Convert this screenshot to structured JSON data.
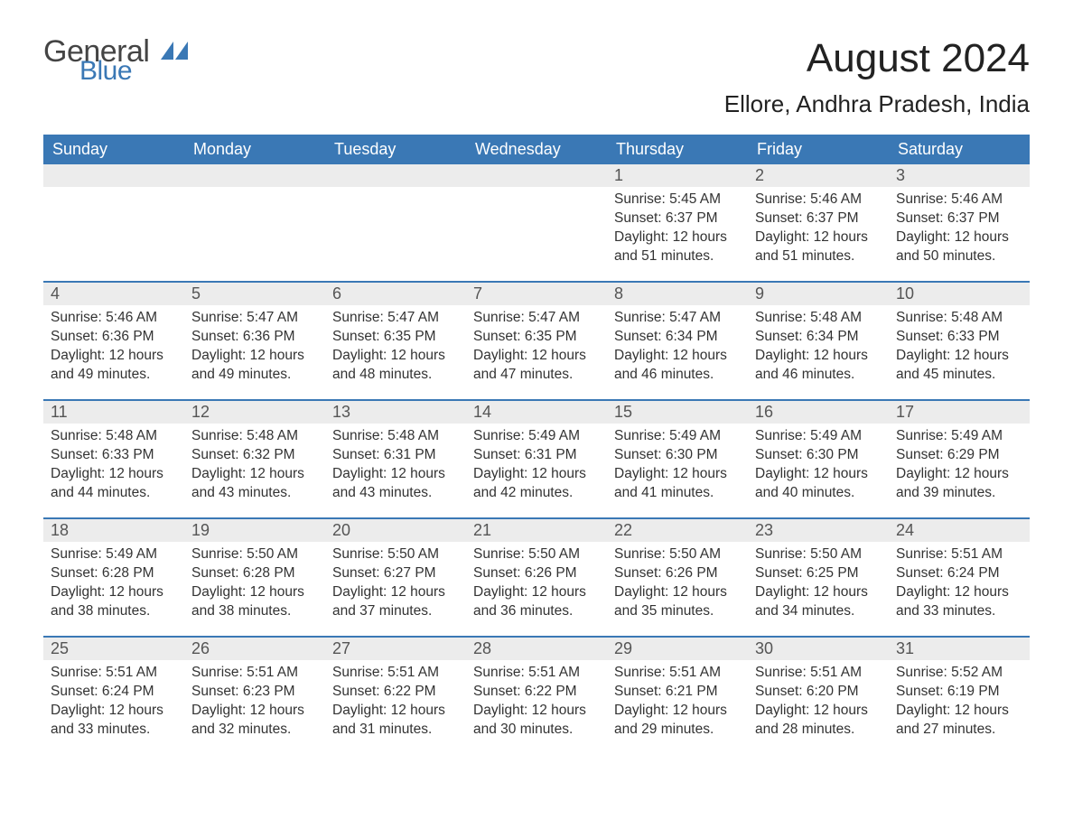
{
  "brand": {
    "part1": "General",
    "part2": "Blue"
  },
  "title": {
    "month": "August 2024",
    "location": "Ellore, Andhra Pradesh, India"
  },
  "colors": {
    "header_bg": "#3a78b5",
    "header_text": "#ffffff",
    "daynum_bg": "#ececec",
    "divider": "#3a78b5",
    "body_text": "#333333",
    "background": "#ffffff"
  },
  "fonts": {
    "base_family": "Arial",
    "title_size_pt": 33,
    "loc_size_pt": 20,
    "header_size_pt": 14,
    "cell_size_pt": 12
  },
  "week_days": [
    "Sunday",
    "Monday",
    "Tuesday",
    "Wednesday",
    "Thursday",
    "Friday",
    "Saturday"
  ],
  "weeks": [
    [
      null,
      null,
      null,
      null,
      {
        "n": "1",
        "sr": "Sunrise: 5:45 AM",
        "ss": "Sunset: 6:37 PM",
        "dl1": "Daylight: 12 hours",
        "dl2": "and 51 minutes."
      },
      {
        "n": "2",
        "sr": "Sunrise: 5:46 AM",
        "ss": "Sunset: 6:37 PM",
        "dl1": "Daylight: 12 hours",
        "dl2": "and 51 minutes."
      },
      {
        "n": "3",
        "sr": "Sunrise: 5:46 AM",
        "ss": "Sunset: 6:37 PM",
        "dl1": "Daylight: 12 hours",
        "dl2": "and 50 minutes."
      }
    ],
    [
      {
        "n": "4",
        "sr": "Sunrise: 5:46 AM",
        "ss": "Sunset: 6:36 PM",
        "dl1": "Daylight: 12 hours",
        "dl2": "and 49 minutes."
      },
      {
        "n": "5",
        "sr": "Sunrise: 5:47 AM",
        "ss": "Sunset: 6:36 PM",
        "dl1": "Daylight: 12 hours",
        "dl2": "and 49 minutes."
      },
      {
        "n": "6",
        "sr": "Sunrise: 5:47 AM",
        "ss": "Sunset: 6:35 PM",
        "dl1": "Daylight: 12 hours",
        "dl2": "and 48 minutes."
      },
      {
        "n": "7",
        "sr": "Sunrise: 5:47 AM",
        "ss": "Sunset: 6:35 PM",
        "dl1": "Daylight: 12 hours",
        "dl2": "and 47 minutes."
      },
      {
        "n": "8",
        "sr": "Sunrise: 5:47 AM",
        "ss": "Sunset: 6:34 PM",
        "dl1": "Daylight: 12 hours",
        "dl2": "and 46 minutes."
      },
      {
        "n": "9",
        "sr": "Sunrise: 5:48 AM",
        "ss": "Sunset: 6:34 PM",
        "dl1": "Daylight: 12 hours",
        "dl2": "and 46 minutes."
      },
      {
        "n": "10",
        "sr": "Sunrise: 5:48 AM",
        "ss": "Sunset: 6:33 PM",
        "dl1": "Daylight: 12 hours",
        "dl2": "and 45 minutes."
      }
    ],
    [
      {
        "n": "11",
        "sr": "Sunrise: 5:48 AM",
        "ss": "Sunset: 6:33 PM",
        "dl1": "Daylight: 12 hours",
        "dl2": "and 44 minutes."
      },
      {
        "n": "12",
        "sr": "Sunrise: 5:48 AM",
        "ss": "Sunset: 6:32 PM",
        "dl1": "Daylight: 12 hours",
        "dl2": "and 43 minutes."
      },
      {
        "n": "13",
        "sr": "Sunrise: 5:48 AM",
        "ss": "Sunset: 6:31 PM",
        "dl1": "Daylight: 12 hours",
        "dl2": "and 43 minutes."
      },
      {
        "n": "14",
        "sr": "Sunrise: 5:49 AM",
        "ss": "Sunset: 6:31 PM",
        "dl1": "Daylight: 12 hours",
        "dl2": "and 42 minutes."
      },
      {
        "n": "15",
        "sr": "Sunrise: 5:49 AM",
        "ss": "Sunset: 6:30 PM",
        "dl1": "Daylight: 12 hours",
        "dl2": "and 41 minutes."
      },
      {
        "n": "16",
        "sr": "Sunrise: 5:49 AM",
        "ss": "Sunset: 6:30 PM",
        "dl1": "Daylight: 12 hours",
        "dl2": "and 40 minutes."
      },
      {
        "n": "17",
        "sr": "Sunrise: 5:49 AM",
        "ss": "Sunset: 6:29 PM",
        "dl1": "Daylight: 12 hours",
        "dl2": "and 39 minutes."
      }
    ],
    [
      {
        "n": "18",
        "sr": "Sunrise: 5:49 AM",
        "ss": "Sunset: 6:28 PM",
        "dl1": "Daylight: 12 hours",
        "dl2": "and 38 minutes."
      },
      {
        "n": "19",
        "sr": "Sunrise: 5:50 AM",
        "ss": "Sunset: 6:28 PM",
        "dl1": "Daylight: 12 hours",
        "dl2": "and 38 minutes."
      },
      {
        "n": "20",
        "sr": "Sunrise: 5:50 AM",
        "ss": "Sunset: 6:27 PM",
        "dl1": "Daylight: 12 hours",
        "dl2": "and 37 minutes."
      },
      {
        "n": "21",
        "sr": "Sunrise: 5:50 AM",
        "ss": "Sunset: 6:26 PM",
        "dl1": "Daylight: 12 hours",
        "dl2": "and 36 minutes."
      },
      {
        "n": "22",
        "sr": "Sunrise: 5:50 AM",
        "ss": "Sunset: 6:26 PM",
        "dl1": "Daylight: 12 hours",
        "dl2": "and 35 minutes."
      },
      {
        "n": "23",
        "sr": "Sunrise: 5:50 AM",
        "ss": "Sunset: 6:25 PM",
        "dl1": "Daylight: 12 hours",
        "dl2": "and 34 minutes."
      },
      {
        "n": "24",
        "sr": "Sunrise: 5:51 AM",
        "ss": "Sunset: 6:24 PM",
        "dl1": "Daylight: 12 hours",
        "dl2": "and 33 minutes."
      }
    ],
    [
      {
        "n": "25",
        "sr": "Sunrise: 5:51 AM",
        "ss": "Sunset: 6:24 PM",
        "dl1": "Daylight: 12 hours",
        "dl2": "and 33 minutes."
      },
      {
        "n": "26",
        "sr": "Sunrise: 5:51 AM",
        "ss": "Sunset: 6:23 PM",
        "dl1": "Daylight: 12 hours",
        "dl2": "and 32 minutes."
      },
      {
        "n": "27",
        "sr": "Sunrise: 5:51 AM",
        "ss": "Sunset: 6:22 PM",
        "dl1": "Daylight: 12 hours",
        "dl2": "and 31 minutes."
      },
      {
        "n": "28",
        "sr": "Sunrise: 5:51 AM",
        "ss": "Sunset: 6:22 PM",
        "dl1": "Daylight: 12 hours",
        "dl2": "and 30 minutes."
      },
      {
        "n": "29",
        "sr": "Sunrise: 5:51 AM",
        "ss": "Sunset: 6:21 PM",
        "dl1": "Daylight: 12 hours",
        "dl2": "and 29 minutes."
      },
      {
        "n": "30",
        "sr": "Sunrise: 5:51 AM",
        "ss": "Sunset: 6:20 PM",
        "dl1": "Daylight: 12 hours",
        "dl2": "and 28 minutes."
      },
      {
        "n": "31",
        "sr": "Sunrise: 5:52 AM",
        "ss": "Sunset: 6:19 PM",
        "dl1": "Daylight: 12 hours",
        "dl2": "and 27 minutes."
      }
    ]
  ]
}
